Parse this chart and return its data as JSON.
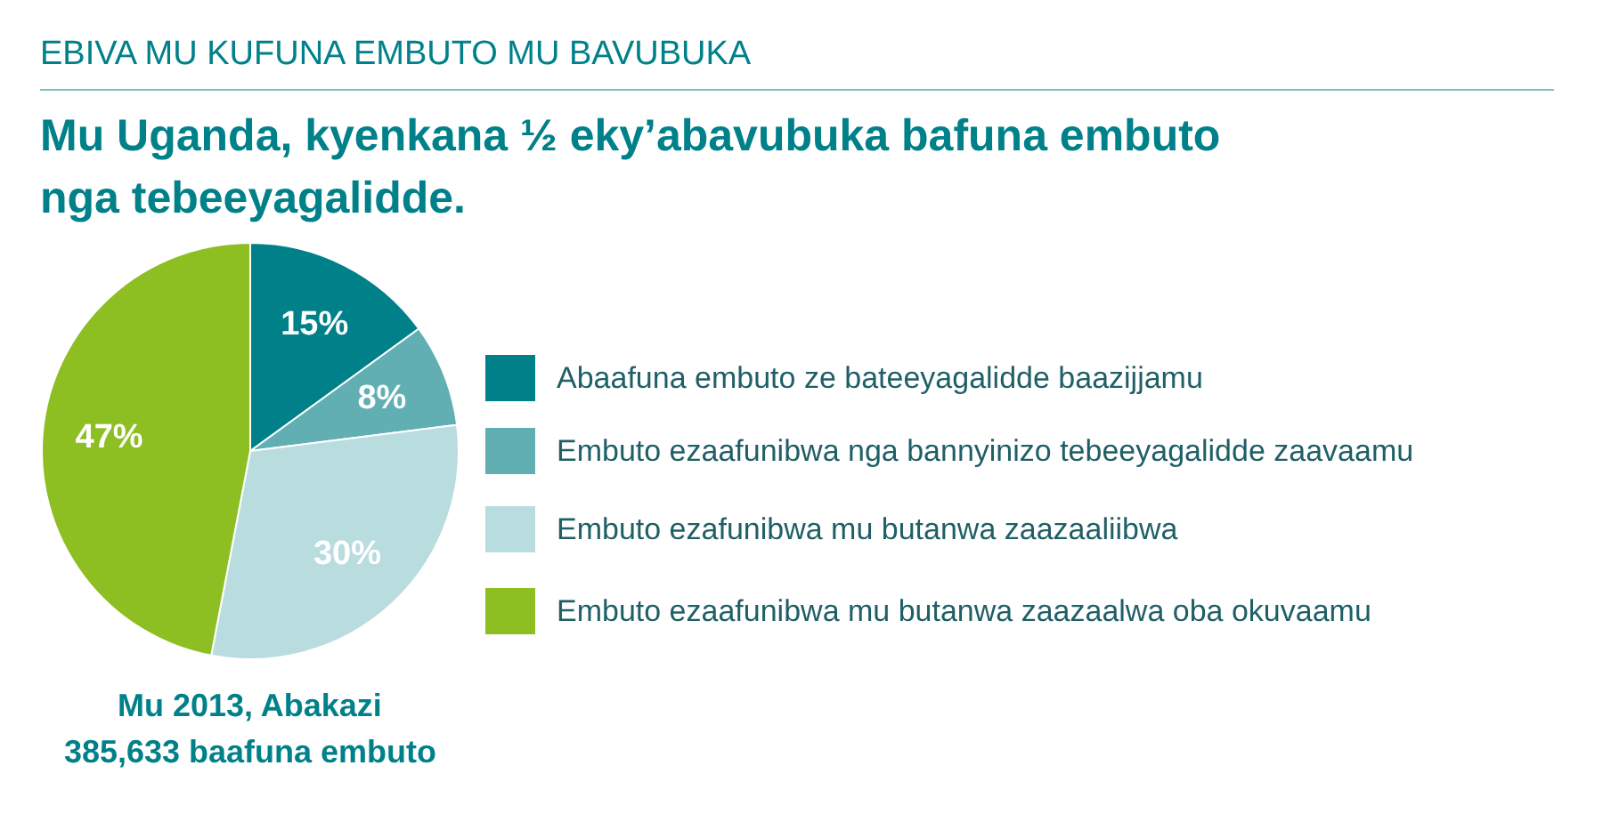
{
  "chart_data": {
    "type": "pie",
    "subtitle": "EBIVA MU KUFUNA EMBUTO MU BAVUBUKA",
    "title": "Mu Uganda, kyenkana ½ eky’abavubuka bafuna embuto\nnga tebeeyagalidde.",
    "categories": [
      "Abaafuna embuto ze bateeyagalidde baazijjamu",
      "Embuto ezaafunibwa nga bannyinizo tebeeyagalidde zaavaamu",
      "Embuto ezafunibwa mu butanwa zaazaaliibwa",
      "Embuto ezaafunibwa mu butanwa zaazaalwa oba okuvaamu"
    ],
    "values": [
      15,
      8,
      30,
      47
    ],
    "colors": [
      "#00818a",
      "#62afb3",
      "#b9dcdf",
      "#8dbe22"
    ],
    "value_labels": [
      "15%",
      "8%",
      "30%",
      "47%"
    ],
    "legend": "right",
    "annotations": [
      "Mu 2013, Abakazi\n385,633 baafuna embuto"
    ]
  }
}
